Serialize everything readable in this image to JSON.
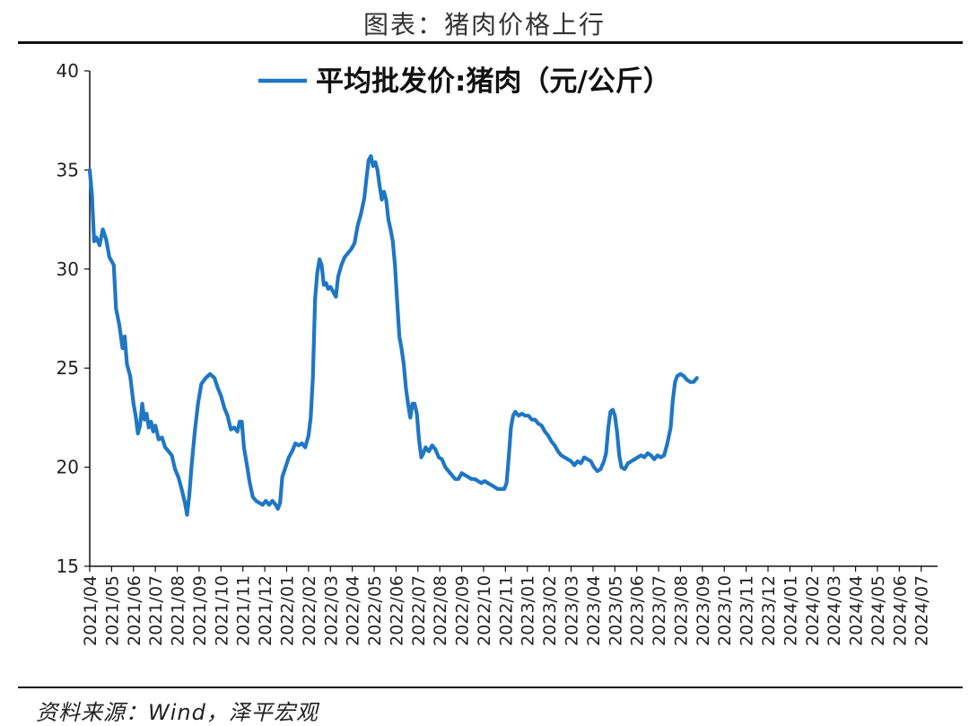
{
  "page": {
    "title": "图表：猪肉价格上行",
    "source": "资料来源：Wind，泽平宏观"
  },
  "colors": {
    "line": "#1f77c4",
    "axis": "#111111",
    "text": "#222222"
  },
  "chart_data": {
    "type": "line",
    "title": "图表：猪肉价格上行",
    "xlabel": "",
    "ylabel": "",
    "ylim": [
      15,
      40
    ],
    "yticks": [
      15,
      20,
      25,
      30,
      35,
      40
    ],
    "grid": false,
    "legend_position": "top-center",
    "categories": [
      "2021/04",
      "2021/05",
      "2021/06",
      "2021/07",
      "2021/08",
      "2021/09",
      "2021/10",
      "2021/11",
      "2021/12",
      "2022/01",
      "2022/02",
      "2022/03",
      "2022/04",
      "2022/05",
      "2022/06",
      "2022/07",
      "2022/08",
      "2022/09",
      "2022/10",
      "2022/11",
      "2023/01",
      "2023/02",
      "2023/03",
      "2023/04",
      "2023/05",
      "2023/06",
      "2023/07",
      "2023/08",
      "2023/09",
      "2023/10",
      "2023/11",
      "2023/12",
      "2024/01",
      "2024/02",
      "2024/03",
      "2024/04",
      "2024/05",
      "2024/06",
      "2024/07"
    ],
    "series": [
      {
        "name": "平均批发价:猪肉（元/公斤）",
        "points": [
          [
            0.0,
            35.0
          ],
          [
            0.1,
            33.8
          ],
          [
            0.2,
            31.4
          ],
          [
            0.3,
            31.6
          ],
          [
            0.45,
            31.2
          ],
          [
            0.6,
            32.0
          ],
          [
            0.75,
            31.5
          ],
          [
            0.9,
            30.6
          ],
          [
            1.0,
            30.4
          ],
          [
            1.1,
            30.2
          ],
          [
            1.2,
            28.0
          ],
          [
            1.35,
            27.2
          ],
          [
            1.5,
            26.0
          ],
          [
            1.6,
            26.6
          ],
          [
            1.7,
            25.2
          ],
          [
            1.85,
            24.6
          ],
          [
            2.0,
            23.2
          ],
          [
            2.1,
            22.6
          ],
          [
            2.2,
            21.7
          ],
          [
            2.3,
            22.1
          ],
          [
            2.4,
            23.2
          ],
          [
            2.5,
            22.4
          ],
          [
            2.6,
            22.7
          ],
          [
            2.7,
            22.0
          ],
          [
            2.8,
            22.3
          ],
          [
            2.9,
            21.8
          ],
          [
            3.0,
            22.1
          ],
          [
            3.15,
            21.4
          ],
          [
            3.3,
            21.5
          ],
          [
            3.45,
            21.0
          ],
          [
            3.6,
            20.8
          ],
          [
            3.75,
            20.6
          ],
          [
            3.9,
            19.9
          ],
          [
            4.05,
            19.5
          ],
          [
            4.2,
            18.9
          ],
          [
            4.35,
            18.2
          ],
          [
            4.45,
            17.6
          ],
          [
            4.55,
            18.6
          ],
          [
            4.65,
            20.0
          ],
          [
            4.8,
            21.8
          ],
          [
            4.95,
            23.2
          ],
          [
            5.1,
            24.2
          ],
          [
            5.3,
            24.5
          ],
          [
            5.5,
            24.7
          ],
          [
            5.7,
            24.5
          ],
          [
            5.85,
            24.0
          ],
          [
            6.0,
            23.6
          ],
          [
            6.15,
            23.0
          ],
          [
            6.3,
            22.6
          ],
          [
            6.45,
            21.9
          ],
          [
            6.6,
            22.0
          ],
          [
            6.75,
            21.8
          ],
          [
            6.85,
            22.3
          ],
          [
            6.95,
            22.3
          ],
          [
            7.05,
            21.0
          ],
          [
            7.2,
            20.0
          ],
          [
            7.3,
            19.3
          ],
          [
            7.45,
            18.5
          ],
          [
            7.6,
            18.3
          ],
          [
            7.75,
            18.2
          ],
          [
            7.9,
            18.1
          ],
          [
            8.05,
            18.3
          ],
          [
            8.2,
            18.1
          ],
          [
            8.35,
            18.3
          ],
          [
            8.5,
            18.1
          ],
          [
            8.6,
            17.9
          ],
          [
            8.7,
            18.2
          ],
          [
            8.8,
            19.5
          ],
          [
            8.95,
            20.0
          ],
          [
            9.1,
            20.5
          ],
          [
            9.25,
            20.8
          ],
          [
            9.4,
            21.2
          ],
          [
            9.55,
            21.1
          ],
          [
            9.7,
            21.2
          ],
          [
            9.85,
            21.0
          ],
          [
            10.0,
            21.6
          ],
          [
            10.1,
            22.5
          ],
          [
            10.2,
            24.5
          ],
          [
            10.3,
            28.5
          ],
          [
            10.4,
            29.8
          ],
          [
            10.5,
            30.5
          ],
          [
            10.6,
            30.2
          ],
          [
            10.7,
            29.2
          ],
          [
            10.8,
            29.3
          ],
          [
            10.9,
            29.0
          ],
          [
            11.0,
            29.1
          ],
          [
            11.15,
            28.8
          ],
          [
            11.25,
            28.6
          ],
          [
            11.35,
            29.6
          ],
          [
            11.5,
            30.2
          ],
          [
            11.65,
            30.6
          ],
          [
            11.8,
            30.8
          ],
          [
            11.95,
            31.0
          ],
          [
            12.1,
            31.3
          ],
          [
            12.25,
            32.2
          ],
          [
            12.4,
            32.8
          ],
          [
            12.55,
            33.6
          ],
          [
            12.65,
            34.6
          ],
          [
            12.75,
            35.5
          ],
          [
            12.85,
            35.7
          ],
          [
            12.95,
            35.2
          ],
          [
            13.05,
            35.4
          ],
          [
            13.15,
            35.0
          ],
          [
            13.25,
            34.2
          ],
          [
            13.35,
            33.5
          ],
          [
            13.45,
            33.9
          ],
          [
            13.55,
            33.5
          ],
          [
            13.65,
            32.5
          ],
          [
            13.75,
            32.0
          ],
          [
            13.85,
            31.4
          ],
          [
            13.95,
            30.2
          ],
          [
            14.05,
            28.4
          ],
          [
            14.15,
            26.6
          ],
          [
            14.25,
            26.0
          ],
          [
            14.35,
            25.2
          ],
          [
            14.45,
            24.0
          ],
          [
            14.55,
            23.2
          ],
          [
            14.65,
            22.5
          ],
          [
            14.75,
            23.2
          ],
          [
            14.85,
            23.2
          ],
          [
            14.95,
            22.7
          ],
          [
            15.05,
            21.4
          ],
          [
            15.15,
            20.5
          ],
          [
            15.25,
            20.7
          ],
          [
            15.35,
            21.0
          ],
          [
            15.5,
            20.8
          ],
          [
            15.65,
            21.1
          ],
          [
            15.8,
            20.9
          ],
          [
            15.95,
            20.5
          ],
          [
            16.1,
            20.4
          ],
          [
            16.25,
            20.0
          ],
          [
            16.4,
            19.8
          ],
          [
            16.55,
            19.6
          ],
          [
            16.7,
            19.4
          ],
          [
            16.85,
            19.4
          ],
          [
            17.0,
            19.7
          ],
          [
            17.15,
            19.6
          ],
          [
            17.3,
            19.5
          ],
          [
            17.45,
            19.4
          ],
          [
            17.6,
            19.4
          ],
          [
            17.75,
            19.3
          ],
          [
            17.9,
            19.2
          ],
          [
            18.05,
            19.3
          ],
          [
            18.2,
            19.2
          ],
          [
            18.35,
            19.1
          ],
          [
            18.5,
            19.0
          ],
          [
            18.65,
            18.9
          ],
          [
            18.8,
            18.9
          ],
          [
            18.95,
            18.9
          ],
          [
            19.05,
            19.2
          ],
          [
            19.15,
            20.5
          ],
          [
            19.25,
            22.0
          ],
          [
            19.35,
            22.6
          ],
          [
            19.45,
            22.8
          ],
          [
            19.6,
            22.6
          ],
          [
            19.75,
            22.7
          ],
          [
            19.9,
            22.6
          ],
          [
            20.05,
            22.6
          ],
          [
            20.2,
            22.4
          ],
          [
            20.35,
            22.4
          ],
          [
            20.5,
            22.2
          ],
          [
            20.65,
            22.1
          ],
          [
            20.8,
            21.8
          ],
          [
            20.95,
            21.6
          ],
          [
            21.1,
            21.3
          ],
          [
            21.25,
            21.1
          ],
          [
            21.4,
            20.8
          ],
          [
            21.55,
            20.6
          ],
          [
            21.7,
            20.5
          ],
          [
            21.85,
            20.4
          ],
          [
            22.0,
            20.3
          ],
          [
            22.15,
            20.1
          ],
          [
            22.3,
            20.3
          ],
          [
            22.45,
            20.2
          ],
          [
            22.6,
            20.5
          ],
          [
            22.75,
            20.4
          ],
          [
            22.9,
            20.3
          ],
          [
            23.05,
            20.0
          ],
          [
            23.2,
            19.8
          ],
          [
            23.35,
            19.9
          ],
          [
            23.5,
            20.3
          ],
          [
            23.6,
            20.7
          ],
          [
            23.7,
            22.0
          ],
          [
            23.8,
            22.8
          ],
          [
            23.9,
            22.9
          ],
          [
            24.0,
            22.6
          ],
          [
            24.1,
            21.8
          ],
          [
            24.2,
            20.6
          ],
          [
            24.3,
            20.0
          ],
          [
            24.45,
            19.9
          ],
          [
            24.6,
            20.2
          ],
          [
            24.75,
            20.3
          ],
          [
            24.9,
            20.4
          ],
          [
            25.05,
            20.5
          ],
          [
            25.2,
            20.6
          ],
          [
            25.35,
            20.5
          ],
          [
            25.5,
            20.7
          ],
          [
            25.65,
            20.6
          ],
          [
            25.8,
            20.4
          ],
          [
            25.95,
            20.6
          ],
          [
            26.1,
            20.5
          ],
          [
            26.25,
            20.6
          ],
          [
            26.4,
            21.2
          ],
          [
            26.55,
            22.0
          ],
          [
            26.65,
            23.4
          ],
          [
            26.75,
            24.3
          ],
          [
            26.85,
            24.6
          ],
          [
            27.0,
            24.7
          ],
          [
            27.15,
            24.6
          ],
          [
            27.3,
            24.4
          ],
          [
            27.45,
            24.3
          ],
          [
            27.6,
            24.3
          ],
          [
            27.75,
            24.5
          ]
        ]
      }
    ]
  }
}
